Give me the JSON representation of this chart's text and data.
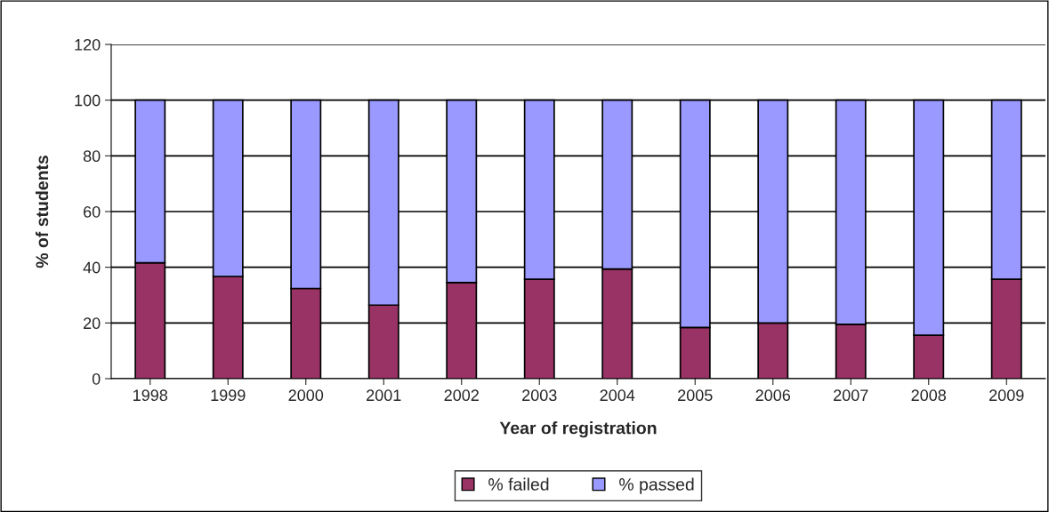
{
  "chart_data": {
    "type": "bar",
    "stacked": true,
    "xlabel": "Year of registration",
    "ylabel": "% of students",
    "categories": [
      "1998",
      "1999",
      "2000",
      "2001",
      "2002",
      "2003",
      "2004",
      "2005",
      "2006",
      "2007",
      "2008",
      "2009"
    ],
    "series": [
      {
        "name": "% failed",
        "color": "#993366",
        "values": [
          41.6,
          36.7,
          32.4,
          26.4,
          34.5,
          35.7,
          39.4,
          18.4,
          20,
          19.5,
          15.6,
          35.7
        ]
      },
      {
        "name": "% passed",
        "color": "#9999ff",
        "values": [
          58.4,
          63.3,
          67.6,
          73.6,
          65.5,
          64.3,
          60.6,
          81.6,
          80,
          80.5,
          84.4,
          64.3
        ]
      }
    ],
    "ylim": [
      0,
      120
    ],
    "yticks": [
      0,
      20,
      40,
      60,
      80,
      100,
      120
    ],
    "grid": "y",
    "legend": "bottom"
  }
}
